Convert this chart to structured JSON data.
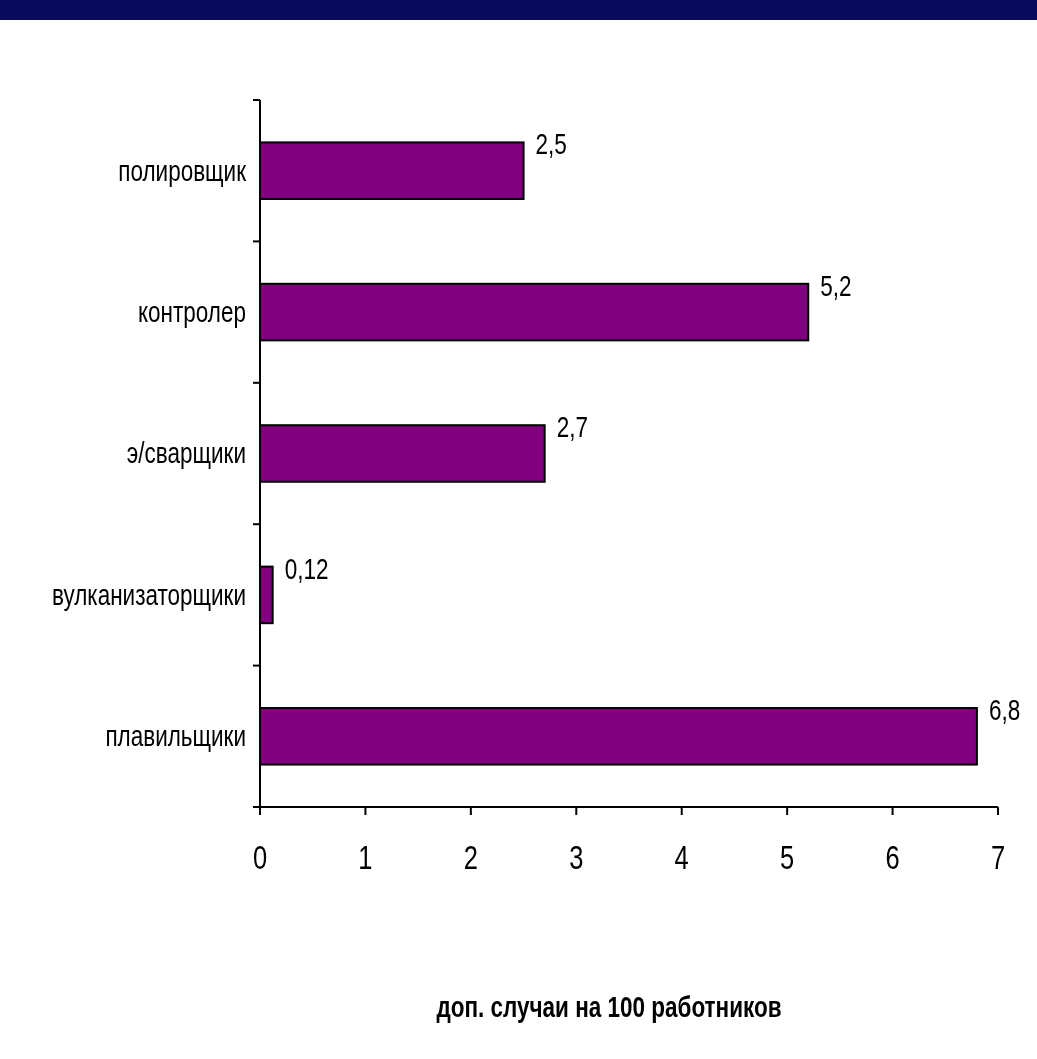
{
  "chart_data": {
    "type": "bar",
    "orientation": "horizontal",
    "xlabel": "доп. случаи на 100 работников",
    "categories": [
      "полировщик",
      "контролер",
      "э/сварщики",
      "вулканизаторщики",
      "плавильщики"
    ],
    "values": [
      2.5,
      5.2,
      2.7,
      0.12,
      6.8
    ],
    "value_labels": [
      "2,5",
      "5,2",
      "2,7",
      "0,12",
      "6,8"
    ],
    "color": "#800080",
    "xlim": [
      0,
      7
    ],
    "xticks": [
      0,
      1,
      2,
      3,
      4,
      5,
      6,
      7
    ],
    "grid": false
  }
}
